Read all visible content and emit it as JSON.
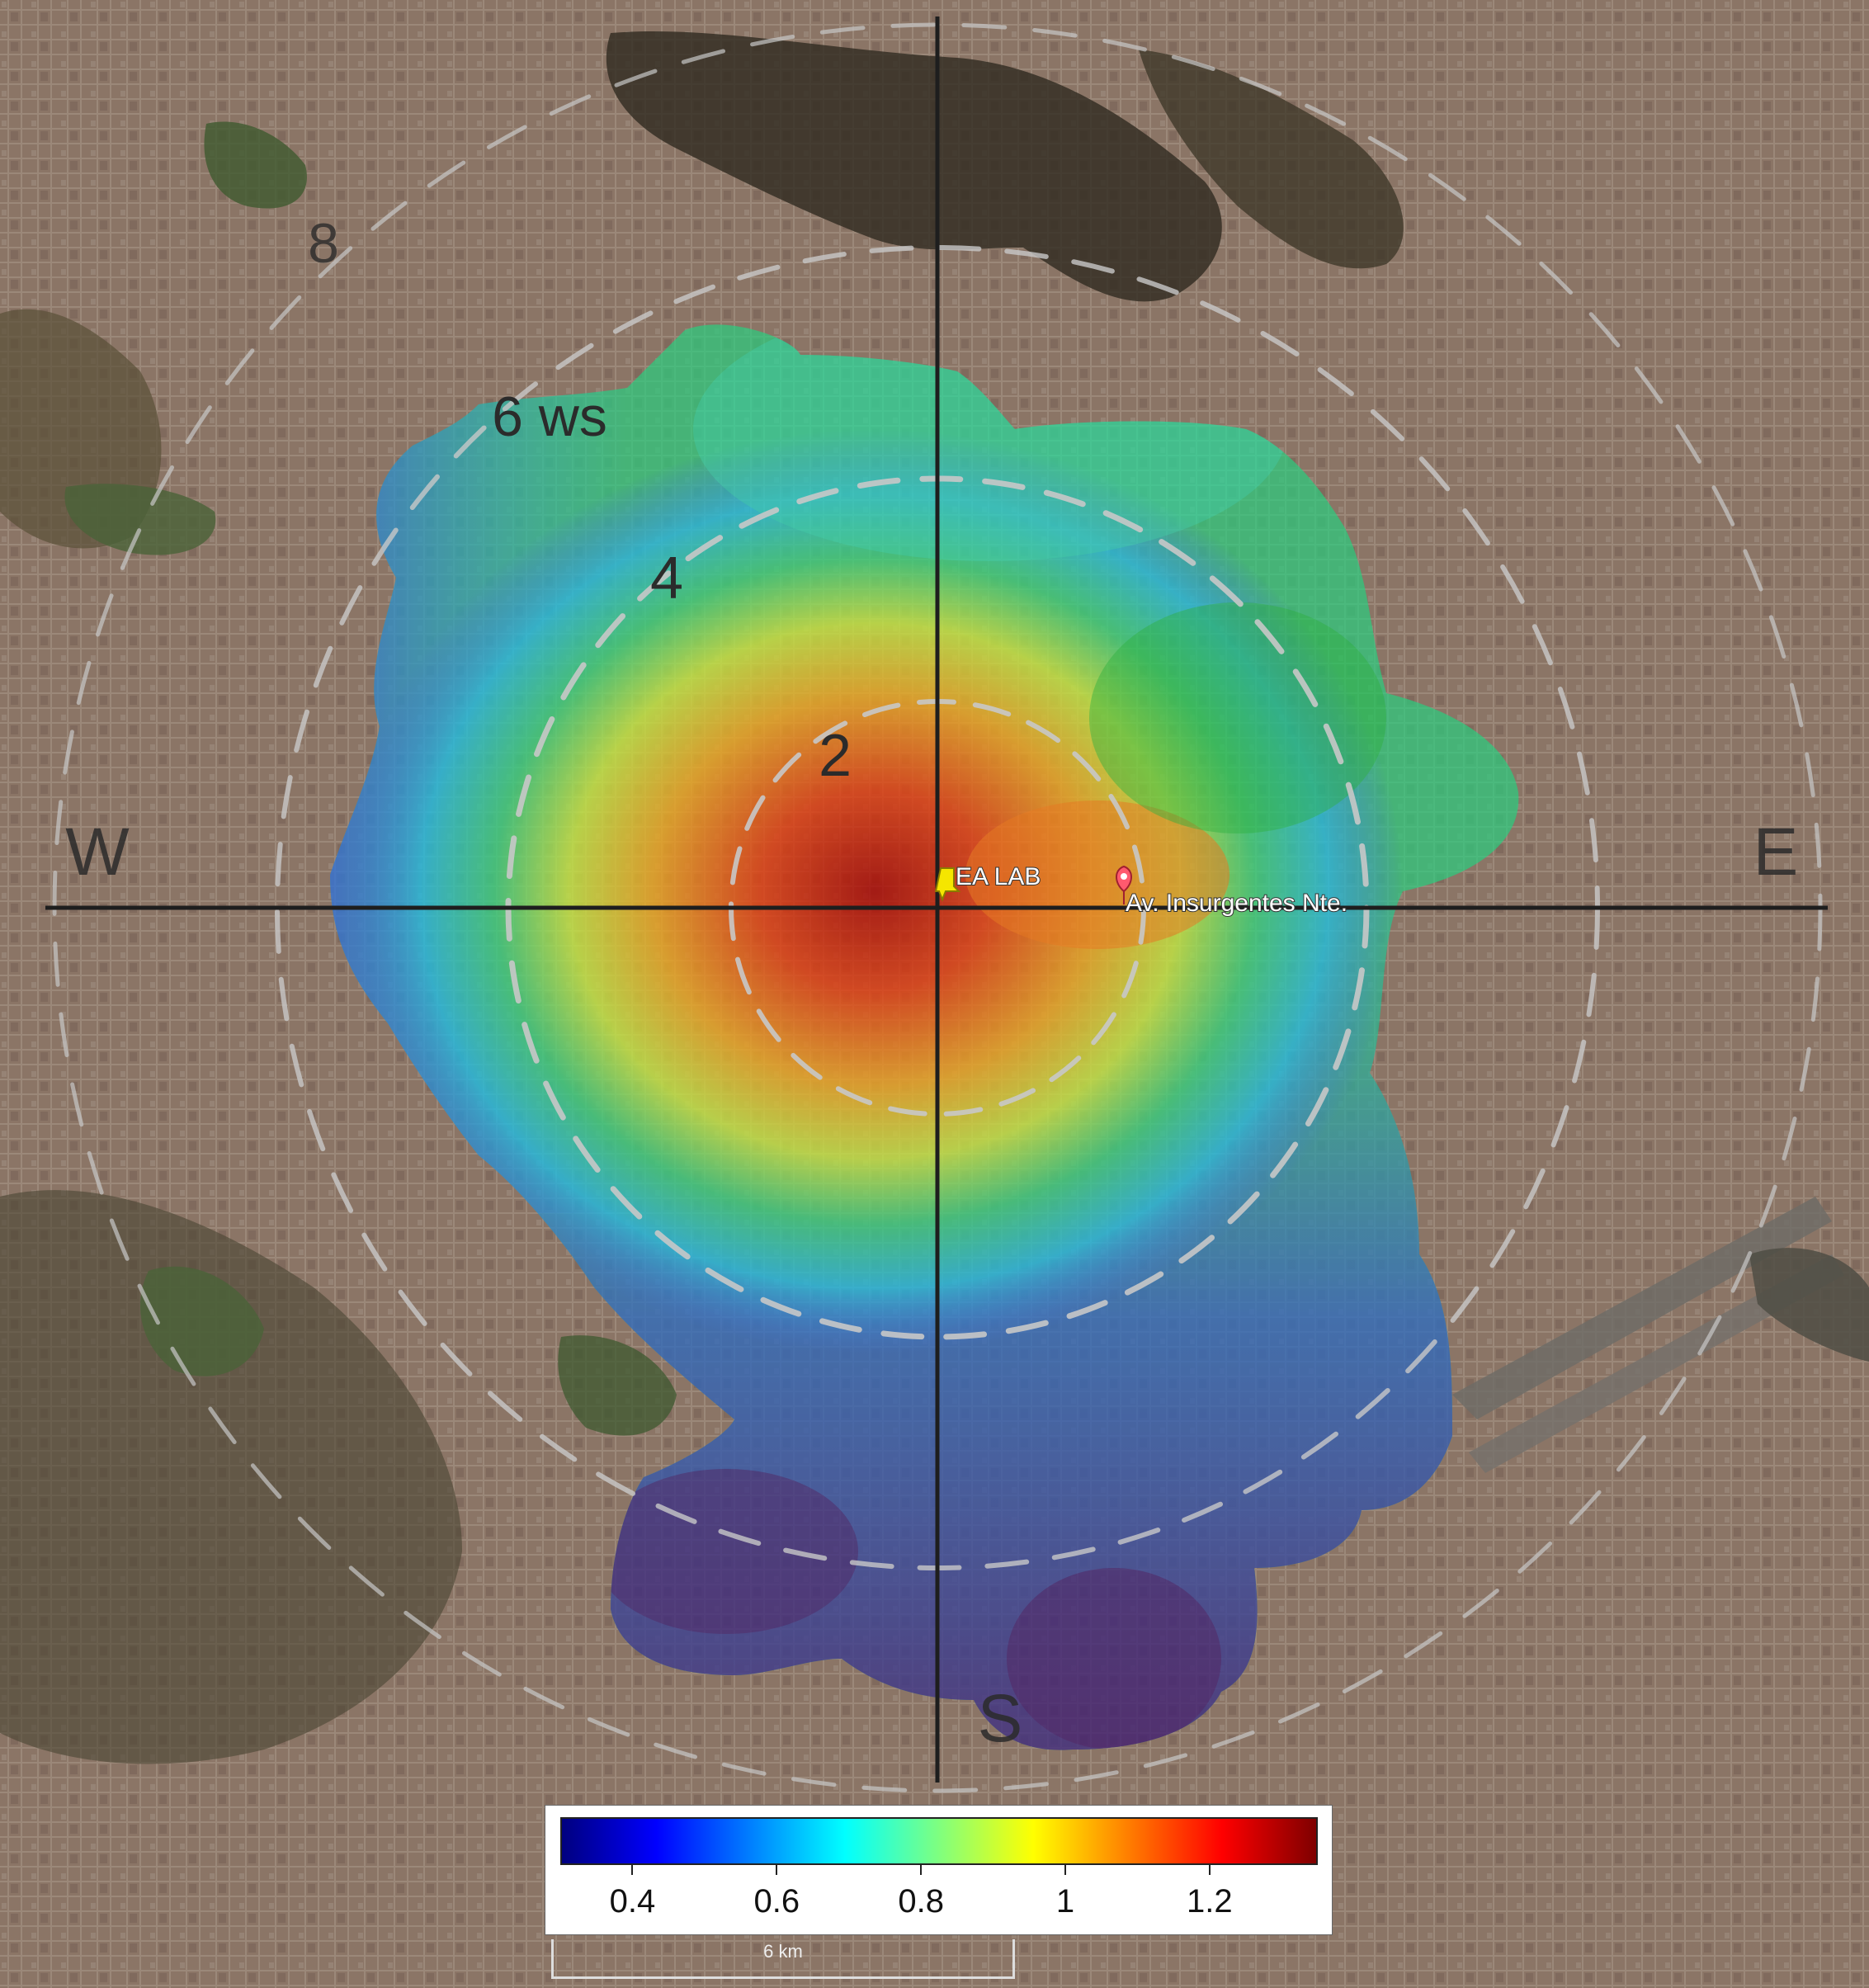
{
  "rings": [
    {
      "label": "2"
    },
    {
      "label": "4"
    },
    {
      "label": "6 ws"
    },
    {
      "label": "8"
    }
  ],
  "compass": {
    "west": "W",
    "east": "E",
    "south": "S"
  },
  "markers": {
    "lab": {
      "label": "EA LAB",
      "color": "#f5e600"
    },
    "avenue": {
      "label": "Av. Insurgentes Nte.",
      "color": "#ff5a6e"
    }
  },
  "colorbar": {
    "colors": [
      "#00007f",
      "#0000ff",
      "#007fff",
      "#00ffff",
      "#7fff7f",
      "#ffff00",
      "#ff7f00",
      "#ff0000",
      "#7f0000"
    ],
    "min": 0.3,
    "max": 1.35,
    "ticks": [
      {
        "value": 0.4,
        "label": "0.4"
      },
      {
        "value": 0.6,
        "label": "0.6"
      },
      {
        "value": 0.8,
        "label": "0.8"
      },
      {
        "value": 1.0,
        "label": "1"
      },
      {
        "value": 1.2,
        "label": "1.2"
      }
    ]
  },
  "scale": {
    "label": "6 km"
  }
}
